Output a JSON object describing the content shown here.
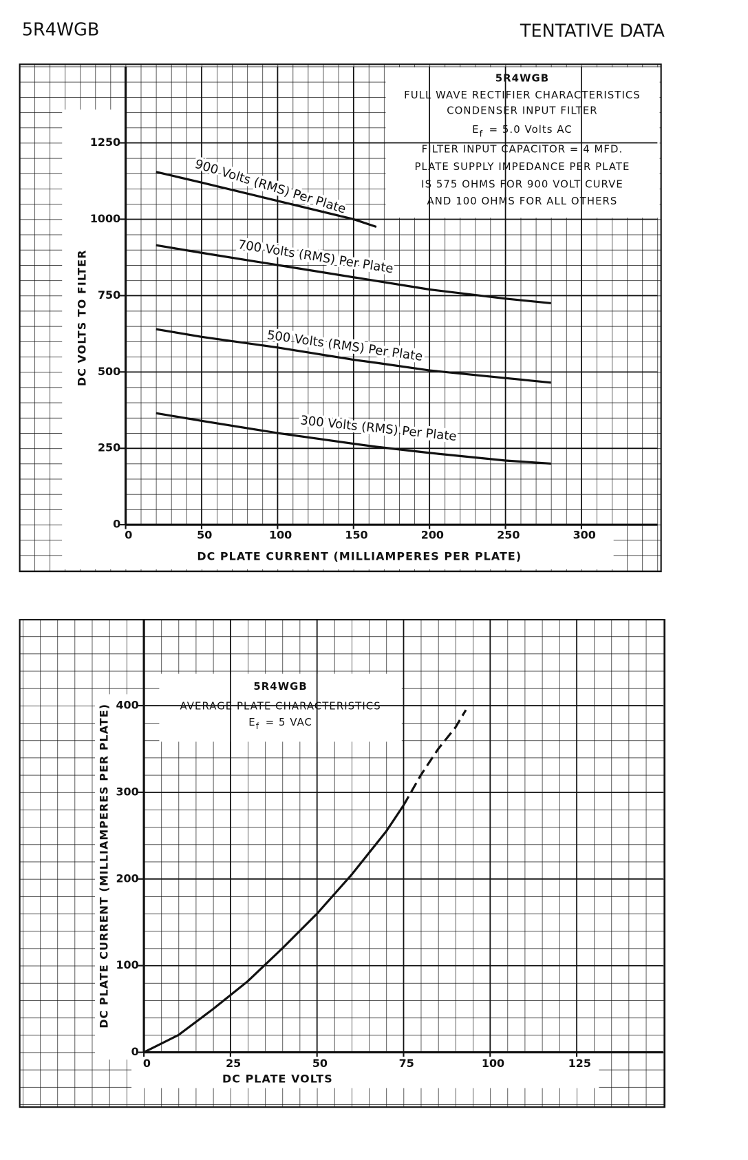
{
  "header": {
    "left": "5R4WGB",
    "right": "TENTATIVE DATA"
  },
  "chart_data": [
    {
      "type": "line",
      "annotation": [
        "5R4WGB",
        "FULL WAVE RECTIFIER CHARACTERISTICS",
        "CONDENSER INPUT FILTER",
        {
          "symbol": "E",
          "subscript": "f",
          "text": "= 5.0 Volts AC"
        },
        "FILTER INPUT CAPACITOR = 4 MFD.",
        "PLATE SUPPLY IMPEDANCE PER PLATE",
        "IS 575 OHMS FOR 900 VOLT CURVE",
        "AND 100 OHMS FOR ALL OTHERS"
      ],
      "x_label": "DC PLATE CURRENT (MILLIAMPERES PER PLATE)",
      "y_label": "DC VOLTS TO FILTER",
      "x": [
        20,
        50,
        100,
        150,
        165,
        200,
        250,
        280
      ],
      "series": [
        {
          "name": "900 Volts (RMS) Per Plate",
          "color": "#111111",
          "values": [
            1155,
            1120,
            1060,
            1000,
            975,
            null,
            null,
            null
          ]
        },
        {
          "name": "700 Volts (RMS) Per Plate",
          "color": "#111111",
          "values": [
            915,
            890,
            850,
            810,
            798,
            770,
            740,
            725
          ]
        },
        {
          "name": "500 Volts (RMS) Per Plate",
          "color": "#111111",
          "values": [
            640,
            615,
            580,
            540,
            530,
            505,
            480,
            465
          ]
        },
        {
          "name": "300 Volts (RMS) Per Plate",
          "color": "#111111",
          "values": [
            365,
            340,
            300,
            265,
            255,
            235,
            210,
            200
          ]
        }
      ],
      "xlim": [
        0,
        350
      ],
      "ylim": [
        0,
        1500
      ],
      "xticks": [
        0,
        50,
        100,
        150,
        200,
        250,
        300
      ],
      "yticks": [
        0,
        250,
        500,
        750,
        1000,
        1250
      ],
      "grid": true
    },
    {
      "type": "line",
      "annotation": [
        "5R4WGB",
        "AVERAGE PLATE CHARACTERISTICS",
        {
          "symbol": "E",
          "subscript": "f",
          "text": "= 5 VAC"
        }
      ],
      "x_label": "DC PLATE VOLTS",
      "y_label": "DC PLATE CURRENT (MILLIAMPERES PER PLATE)",
      "x": [
        0,
        10,
        20,
        30,
        40,
        50,
        60,
        70,
        75,
        80,
        85,
        90,
        93
      ],
      "series": [
        {
          "color": "#111111",
          "values": [
            0,
            20,
            50,
            82,
            120,
            160,
            205,
            255,
            285,
            null,
            null,
            null,
            null
          ]
        },
        {
          "color": "#111111",
          "dashed": true,
          "values": [
            null,
            null,
            null,
            null,
            null,
            null,
            null,
            null,
            285,
            320,
            350,
            375,
            395
          ]
        }
      ],
      "xlim": [
        0,
        150
      ],
      "ylim": [
        0,
        500
      ],
      "xticks": [
        0,
        25,
        50,
        75,
        100,
        125
      ],
      "yticks": [
        0,
        100,
        200,
        300,
        400
      ],
      "grid": true
    }
  ]
}
